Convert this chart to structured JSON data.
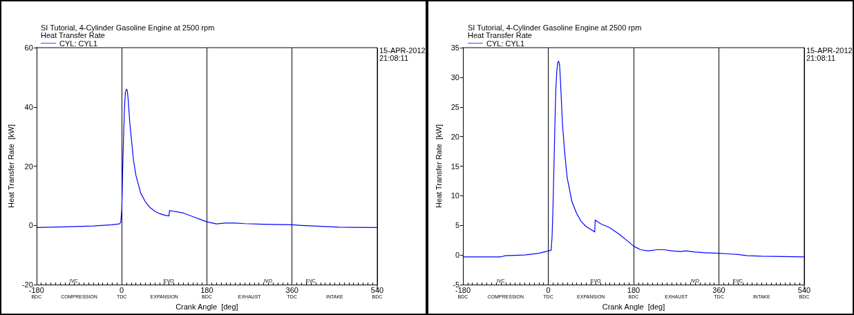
{
  "chart_data": [
    {
      "type": "line",
      "title": "SI Tutorial, 4-Cylinder Gasoline Engine at 2500 rpm",
      "subtitle": "Heat Transfer Rate",
      "xlabel": "Crank Angle  [deg]",
      "ylabel": "Heat Transfer Rate  [kW]",
      "legend": "top left",
      "grid": "x",
      "marker": "none",
      "line_style": "solid",
      "xlim": [
        -180,
        540
      ],
      "xticks": [
        {
          "value": -180,
          "label": "-180\nBDC"
        },
        {
          "value": 0,
          "label": "0\nTDC"
        },
        {
          "value": 180,
          "label": "180\nBDC"
        },
        {
          "value": 360,
          "label": "360\nTDC"
        },
        {
          "value": 540,
          "label": "540\nBDC"
        }
      ],
      "ylim": [
        -20,
        60
      ],
      "yticks": [
        -20,
        0,
        20,
        40,
        60
      ],
      "annotations": [
        "15-APR-2012\n21:08:11",
        "COMPRESSION",
        "EXPANSION",
        "EXHAUST",
        "INTAKE",
        "IVC",
        "EVO",
        "IVO",
        "EVC"
      ],
      "series": [
        {
          "name": "CYL: CYL1",
          "color": "#0000ff",
          "x": [
            -180,
            -120,
            -60,
            -20,
            -5,
            -2,
            0,
            1,
            2,
            4,
            6,
            8,
            10,
            12,
            14,
            17,
            20,
            25,
            30,
            40,
            50,
            60,
            70,
            80,
            90,
            100,
            101,
            110,
            130,
            150,
            170,
            180,
            200,
            220,
            240,
            260,
            300,
            360,
            380,
            420,
            460,
            540
          ],
          "values": [
            -0.7,
            -0.5,
            -0.2,
            0.2,
            0.5,
            1,
            5,
            10,
            18,
            30,
            40,
            45,
            46,
            45.5,
            42,
            35,
            30,
            22,
            17,
            11,
            8,
            6,
            4.8,
            4,
            3.5,
            3.2,
            5,
            4.8,
            4.2,
            3,
            1.8,
            1.2,
            0.5,
            0.8,
            0.8,
            0.6,
            0.4,
            0.2,
            0,
            -0.3,
            -0.6,
            -0.7
          ]
        }
      ]
    },
    {
      "type": "line",
      "title": "SI Tutorial, 4-Cylinder Gasoline Engine at 2500 rpm",
      "subtitle": "Heat Transfer Rate",
      "xlabel": "Crank Angle  [deg]",
      "ylabel": "Heat Transfer Rate  [kW]",
      "legend": "top left",
      "grid": "x",
      "marker": "none",
      "line_style": "solid",
      "xlim": [
        -180,
        540
      ],
      "xticks": [
        {
          "value": -180,
          "label": "-180\nBDC"
        },
        {
          "value": 0,
          "label": "0\nTDC"
        },
        {
          "value": 180,
          "label": "180\nBDC"
        },
        {
          "value": 360,
          "label": "360\nTDC"
        },
        {
          "value": 540,
          "label": "540\nBDC"
        }
      ],
      "ylim": [
        -5,
        35
      ],
      "yticks": [
        -5,
        0,
        5,
        10,
        15,
        20,
        25,
        30,
        35
      ],
      "annotations": [
        "15-APR-2012\n21:08:11",
        "COMPRESSION",
        "EXPANSION",
        "EXHAUST",
        "INTAKE",
        "IVC",
        "EVO",
        "IVO",
        "EVC"
      ],
      "series": [
        {
          "name": "CYL: CYL1",
          "color": "#0000ff",
          "x": [
            -180,
            -100,
            -90,
            -50,
            -40,
            -20,
            -5,
            0,
            6,
            8,
            10,
            12,
            14,
            16,
            18,
            20,
            22,
            24,
            26,
            30,
            35,
            40,
            50,
            60,
            70,
            80,
            90,
            98,
            99,
            110,
            130,
            150,
            170,
            180,
            195,
            210,
            230,
            245,
            260,
            280,
            290,
            310,
            330,
            360,
            380,
            400,
            420,
            450,
            540
          ],
          "values": [
            -0.3,
            -0.3,
            -0.1,
            0,
            0.1,
            0.3,
            0.6,
            0.7,
            0.8,
            3,
            8,
            15,
            22,
            28,
            31,
            32.5,
            32.7,
            32,
            29,
            22,
            17,
            13,
            9,
            7,
            5.6,
            4.8,
            4.3,
            3.9,
            5.9,
            5.3,
            4.6,
            3.5,
            2.2,
            1.5,
            0.9,
            0.7,
            0.9,
            0.9,
            0.7,
            0.6,
            0.7,
            0.5,
            0.4,
            0.3,
            0.2,
            0.1,
            -0.1,
            -0.2,
            -0.3
          ]
        }
      ]
    }
  ]
}
